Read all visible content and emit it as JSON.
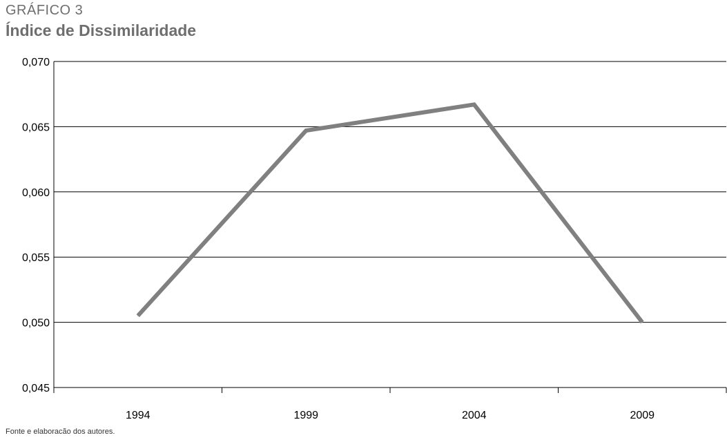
{
  "header": {
    "figure_label": "GRÁFICO 3",
    "title": "Índice de Dissimilaridade"
  },
  "footer": {
    "source": "Fonte e elaboracão dos autores."
  },
  "chart_data": {
    "type": "line",
    "categories": [
      "1994",
      "1999",
      "2004",
      "2009"
    ],
    "series": [
      {
        "values": [
          0.0505,
          0.0647,
          0.0667,
          0.05
        ],
        "color": "#808080"
      }
    ],
    "ylim": [
      0.045,
      0.07
    ],
    "yticks": [
      0.045,
      0.05,
      0.055,
      0.06,
      0.065,
      0.07
    ],
    "ytick_labels": [
      "0,045",
      "0,050",
      "0,055",
      "0,060",
      "0,065",
      "0,070"
    ],
    "grid": true,
    "legend": "none",
    "xlabel": "",
    "ylabel": ""
  }
}
